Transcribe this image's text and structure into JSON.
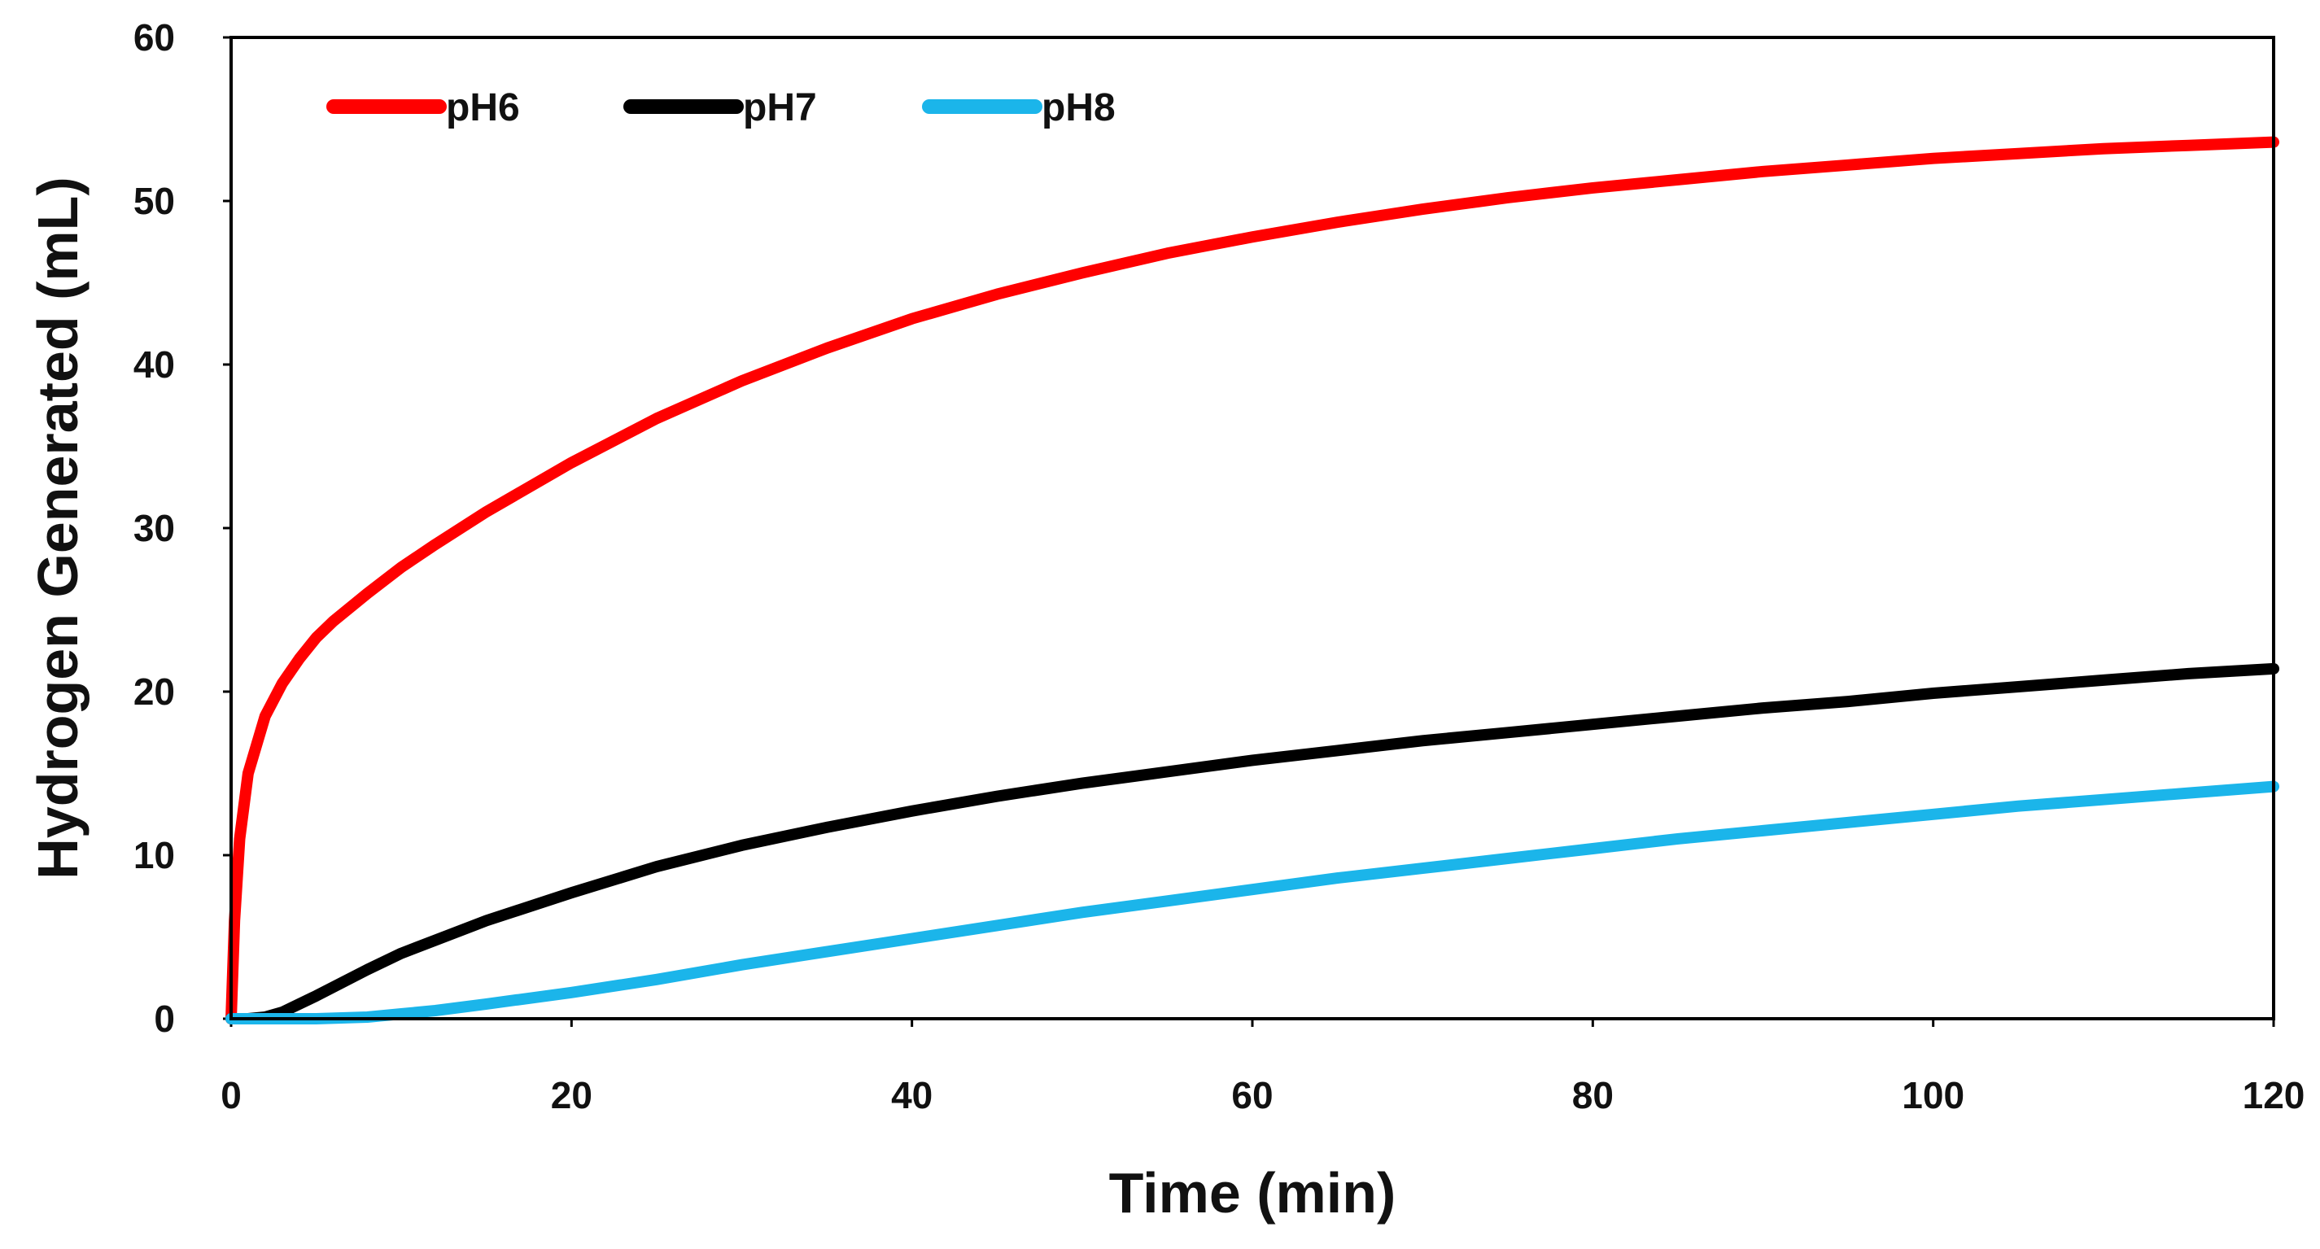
{
  "chart_data": {
    "type": "line",
    "title": "",
    "xlabel": "Time (min)",
    "ylabel": "Hydrogen Generated (mL)",
    "xlim": [
      0,
      120
    ],
    "ylim": [
      0,
      60
    ],
    "xticks": [
      0,
      20,
      40,
      60,
      80,
      100,
      120
    ],
    "yticks": [
      0,
      10,
      20,
      30,
      40,
      50,
      60
    ],
    "grid": false,
    "legend_position": "top-left",
    "series": [
      {
        "name": "pH6",
        "color": "#ff0000",
        "x": [
          0,
          0.2,
          0.5,
          1,
          2,
          3,
          4,
          5,
          6,
          8,
          10,
          12,
          15,
          20,
          25,
          30,
          35,
          40,
          45,
          50,
          55,
          60,
          65,
          70,
          75,
          80,
          85,
          90,
          95,
          100,
          105,
          110,
          115,
          120
        ],
        "y": [
          0,
          6,
          11,
          15,
          18.5,
          20.5,
          22,
          23.3,
          24.3,
          26,
          27.6,
          29,
          31,
          34,
          36.7,
          39,
          41,
          42.8,
          44.3,
          45.6,
          46.8,
          47.8,
          48.7,
          49.5,
          50.2,
          50.8,
          51.3,
          51.8,
          52.2,
          52.6,
          52.9,
          53.2,
          53.4,
          53.6
        ]
      },
      {
        "name": "pH7",
        "color": "#000000",
        "x": [
          0,
          1,
          2,
          3,
          5,
          8,
          10,
          15,
          20,
          25,
          30,
          35,
          40,
          45,
          50,
          55,
          60,
          65,
          70,
          75,
          80,
          85,
          90,
          95,
          100,
          105,
          110,
          115,
          120
        ],
        "y": [
          0,
          0,
          0.1,
          0.4,
          1.4,
          3,
          4,
          6,
          7.7,
          9.3,
          10.6,
          11.7,
          12.7,
          13.6,
          14.4,
          15.1,
          15.8,
          16.4,
          17,
          17.5,
          18,
          18.5,
          19,
          19.4,
          19.9,
          20.3,
          20.7,
          21.1,
          21.4
        ]
      },
      {
        "name": "pH8",
        "color": "#1bb5ea",
        "x": [
          0,
          5,
          8,
          10,
          12,
          15,
          20,
          25,
          30,
          35,
          40,
          45,
          50,
          55,
          60,
          65,
          70,
          75,
          80,
          85,
          90,
          95,
          100,
          105,
          110,
          115,
          120
        ],
        "y": [
          0,
          0,
          0.1,
          0.3,
          0.5,
          0.9,
          1.6,
          2.4,
          3.3,
          4.1,
          4.9,
          5.7,
          6.5,
          7.2,
          7.9,
          8.6,
          9.2,
          9.8,
          10.4,
          11,
          11.5,
          12,
          12.5,
          13,
          13.4,
          13.8,
          14.2
        ]
      }
    ]
  }
}
